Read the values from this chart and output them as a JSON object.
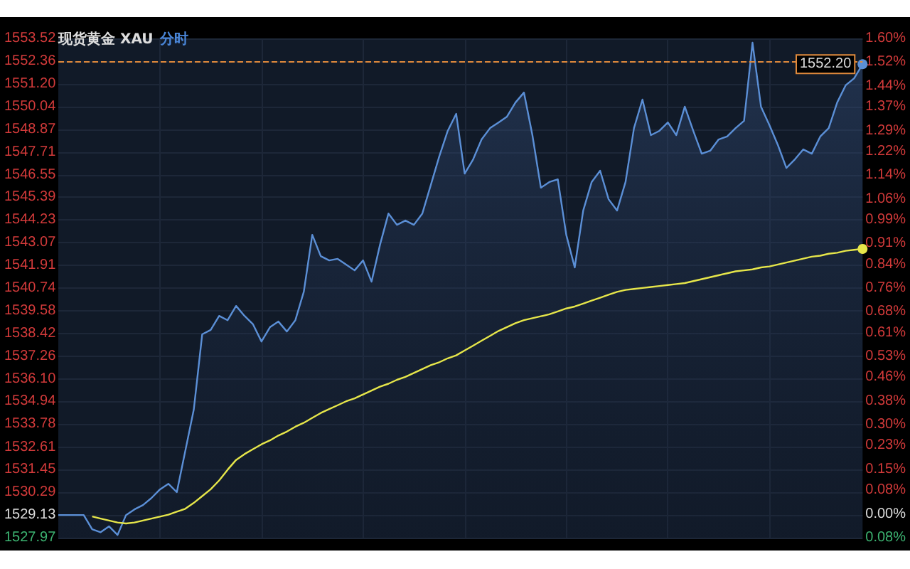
{
  "chart_data": {
    "type": "area",
    "title": "现货黄金 XAU",
    "subtitle": "分时",
    "categories": [
      null,
      null,
      null,
      null,
      null,
      null,
      null,
      null,
      null,
      null,
      null,
      null,
      null,
      null,
      null,
      null,
      null,
      null,
      null,
      null,
      null,
      null,
      null,
      null,
      null,
      null,
      null,
      null,
      null,
      null,
      null,
      null,
      null,
      null,
      null,
      null,
      null,
      null,
      null,
      null,
      null,
      null,
      null,
      null,
      null,
      null,
      null,
      null,
      null,
      null,
      null,
      null,
      null,
      null,
      null,
      null,
      null,
      null,
      null,
      null,
      null,
      null,
      null,
      null,
      null,
      null,
      null,
      null,
      null,
      null,
      null,
      null,
      null,
      null,
      null,
      null,
      null,
      null,
      null,
      null,
      null,
      null,
      null,
      null,
      null,
      null,
      null,
      null,
      null,
      null,
      null,
      null,
      null,
      null,
      null,
      null
    ],
    "series": [
      {
        "color": "#5b8fd6",
        "values": [
          1529.13,
          1529.13,
          1529.13,
          1529.13,
          1528.4,
          1528.25,
          1528.55,
          1528.11,
          1529.13,
          1529.42,
          1529.64,
          1530.0,
          1530.44,
          1530.73,
          1530.3,
          1532.41,
          1534.52,
          1538.38,
          1538.6,
          1539.32,
          1539.1,
          1539.83,
          1539.32,
          1538.89,
          1538.01,
          1538.74,
          1539.03,
          1538.52,
          1539.1,
          1540.56,
          1543.47,
          1542.38,
          1542.16,
          1542.24,
          1541.95,
          1541.65,
          1542.16,
          1541.07,
          1542.96,
          1544.56,
          1543.98,
          1544.2,
          1543.98,
          1544.56,
          1546.02,
          1547.48,
          1548.79,
          1549.66,
          1546.6,
          1547.33,
          1548.35,
          1548.93,
          1549.22,
          1549.52,
          1550.24,
          1550.75,
          1548.57,
          1545.88,
          1546.17,
          1546.31,
          1543.47,
          1541.8,
          1544.71,
          1546.17,
          1546.75,
          1545.29,
          1544.71,
          1546.17,
          1548.93,
          1550.39,
          1548.57,
          1548.79,
          1549.22,
          1548.57,
          1550.03,
          1548.79,
          1547.62,
          1547.77,
          1548.35,
          1548.5,
          1548.93,
          1549.3,
          1553.3,
          1550.03,
          1549.08,
          1548.06,
          1546.89,
          1547.33,
          1547.84,
          1547.62,
          1548.5,
          1548.93,
          1550.24,
          1551.12,
          1551.48,
          1552.2
        ]
      },
      {
        "type": "line",
        "color": "#e6e64a",
        "values": [
          null,
          null,
          null,
          null,
          1529.06,
          1528.95,
          1528.85,
          1528.75,
          1528.7,
          1528.75,
          1528.85,
          1528.95,
          1529.05,
          1529.15,
          1529.3,
          1529.45,
          1529.75,
          1530.1,
          1530.45,
          1530.9,
          1531.45,
          1531.95,
          1532.25,
          1532.5,
          1532.75,
          1532.95,
          1533.2,
          1533.4,
          1533.65,
          1533.85,
          1534.1,
          1534.35,
          1534.55,
          1534.75,
          1534.95,
          1535.1,
          1535.3,
          1535.5,
          1535.7,
          1535.85,
          1536.05,
          1536.2,
          1536.4,
          1536.6,
          1536.8,
          1536.95,
          1537.15,
          1537.3,
          1537.55,
          1537.8,
          1538.05,
          1538.3,
          1538.55,
          1538.75,
          1538.95,
          1539.1,
          1539.2,
          1539.3,
          1539.4,
          1539.55,
          1539.7,
          1539.8,
          1539.95,
          1540.1,
          1540.25,
          1540.4,
          1540.55,
          1540.65,
          1540.7,
          1540.75,
          1540.8,
          1540.85,
          1540.9,
          1540.95,
          1541.0,
          1541.1,
          1541.2,
          1541.3,
          1541.4,
          1541.5,
          1541.6,
          1541.65,
          1541.7,
          1541.8,
          1541.85,
          1541.95,
          1542.05,
          1542.15,
          1542.25,
          1542.35,
          1542.4,
          1542.5,
          1542.55,
          1542.65,
          1542.7,
          1542.75
        ]
      }
    ],
    "ylim": [
      1527.97,
      1553.52
    ],
    "yticks": [
      1527.97,
      1529.13,
      1530.29,
      1531.45,
      1532.61,
      1533.78,
      1534.94,
      {
        "value": 1536.1,
        "label": "1536.10"
      },
      1537.26,
      1538.42,
      1539.58,
      1540.74,
      1541.91,
      1543.07,
      1544.23,
      1545.39,
      1546.55,
      1547.71,
      1548.87,
      1550.04,
      {
        "value": 1551.2,
        "label": "1551.20"
      },
      1552.36,
      1553.52
    ],
    "y2lim": [
      -0.08,
      1.6
    ],
    "y2ticks": [
      {
        "value": -0.08,
        "label": "0.08%"
      },
      {
        "value": 0,
        "label": "0.00%"
      },
      {
        "value": 0.08,
        "label": "0.08%"
      },
      {
        "value": 0.15,
        "label": "0.15%"
      },
      {
        "value": 0.23,
        "label": "0.23%"
      },
      {
        "value": 0.3,
        "label": "0.30%"
      },
      {
        "value": 0.38,
        "label": "0.38%"
      },
      {
        "value": 0.46,
        "label": "0.46%"
      },
      {
        "value": 0.53,
        "label": "0.53%"
      },
      {
        "value": 0.61,
        "label": "0.61%"
      },
      {
        "value": 0.68,
        "label": "0.68%"
      },
      {
        "value": 0.76,
        "label": "0.76%"
      },
      {
        "value": 0.84,
        "label": "0.84%"
      },
      {
        "value": 0.91,
        "label": "0.91%"
      },
      {
        "value": 0.99,
        "label": "0.99%"
      },
      {
        "value": 1.06,
        "label": "1.06%"
      },
      {
        "value": 1.14,
        "label": "1.14%"
      },
      {
        "value": 1.22,
        "label": "1.22%"
      },
      {
        "value": 1.29,
        "label": "1.29%"
      },
      {
        "value": 1.37,
        "label": "1.37%"
      },
      {
        "value": 1.44,
        "label": "1.44%"
      },
      {
        "value": 1.52,
        "label": "1.52%"
      },
      {
        "value": 1.6,
        "label": "1.60%"
      }
    ],
    "ref_lines": [
      {
        "axis": "y",
        "value": 1552.36,
        "color": "#e08a3c",
        "line_style": "dashed"
      }
    ],
    "annotations": [
      "1552.20"
    ],
    "grid": true
  }
}
